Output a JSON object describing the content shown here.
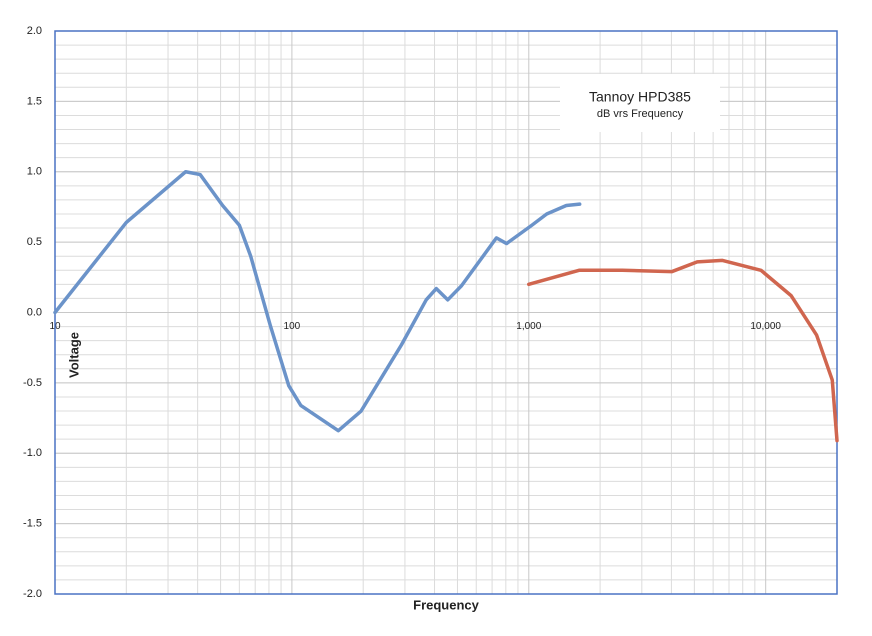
{
  "chart_data": {
    "type": "line",
    "title": "Tannoy HPD385",
    "subtitle": "dB vrs Frequency",
    "x_label": "Frequency",
    "y_label": "Voltage",
    "x_log": true,
    "grid": true,
    "xlim": [
      10,
      20000
    ],
    "xticks": [
      10,
      100,
      {
        "value": 1000,
        "label": "1,000"
      },
      {
        "value": 10000,
        "label": "10,000"
      }
    ],
    "ylim": [
      -2,
      2
    ],
    "yticks": [
      {
        "value": -2,
        "label": "-2.0"
      },
      -1.5,
      {
        "value": -1,
        "label": "-1.0"
      },
      -0.5,
      {
        "value": 0,
        "label": "0.0"
      },
      0.5,
      {
        "value": 1,
        "label": "1.0"
      },
      1.5,
      {
        "value": 2,
        "label": "2.0"
      }
    ],
    "series": [
      {
        "color": "#6b93c9",
        "x": [
          10,
          20,
          35.6,
          41,
          51,
          60,
          67,
          81,
          97,
          109,
          157,
          196,
          290,
          369,
          407,
          455,
          520,
          730,
          806,
          1030,
          1190,
          1440,
          1640
        ],
        "values": [
          0,
          0.64,
          1.0,
          0.98,
          0.76,
          0.62,
          0.4,
          -0.09,
          -0.52,
          -0.66,
          -0.84,
          -0.7,
          -0.23,
          0.09,
          0.17,
          0.09,
          0.19,
          0.53,
          0.49,
          0.62,
          0.7,
          0.76,
          0.77
        ]
      },
      {
        "color": "#d0664f",
        "x": [
          1000,
          1630,
          2480,
          4010,
          5140,
          6570,
          9550,
          12800,
          16400,
          19100,
          20000
        ],
        "values": [
          0.2,
          0.3,
          0.3,
          0.29,
          0.36,
          0.37,
          0.3,
          0.12,
          -0.16,
          -0.48,
          -0.91
        ]
      }
    ]
  }
}
